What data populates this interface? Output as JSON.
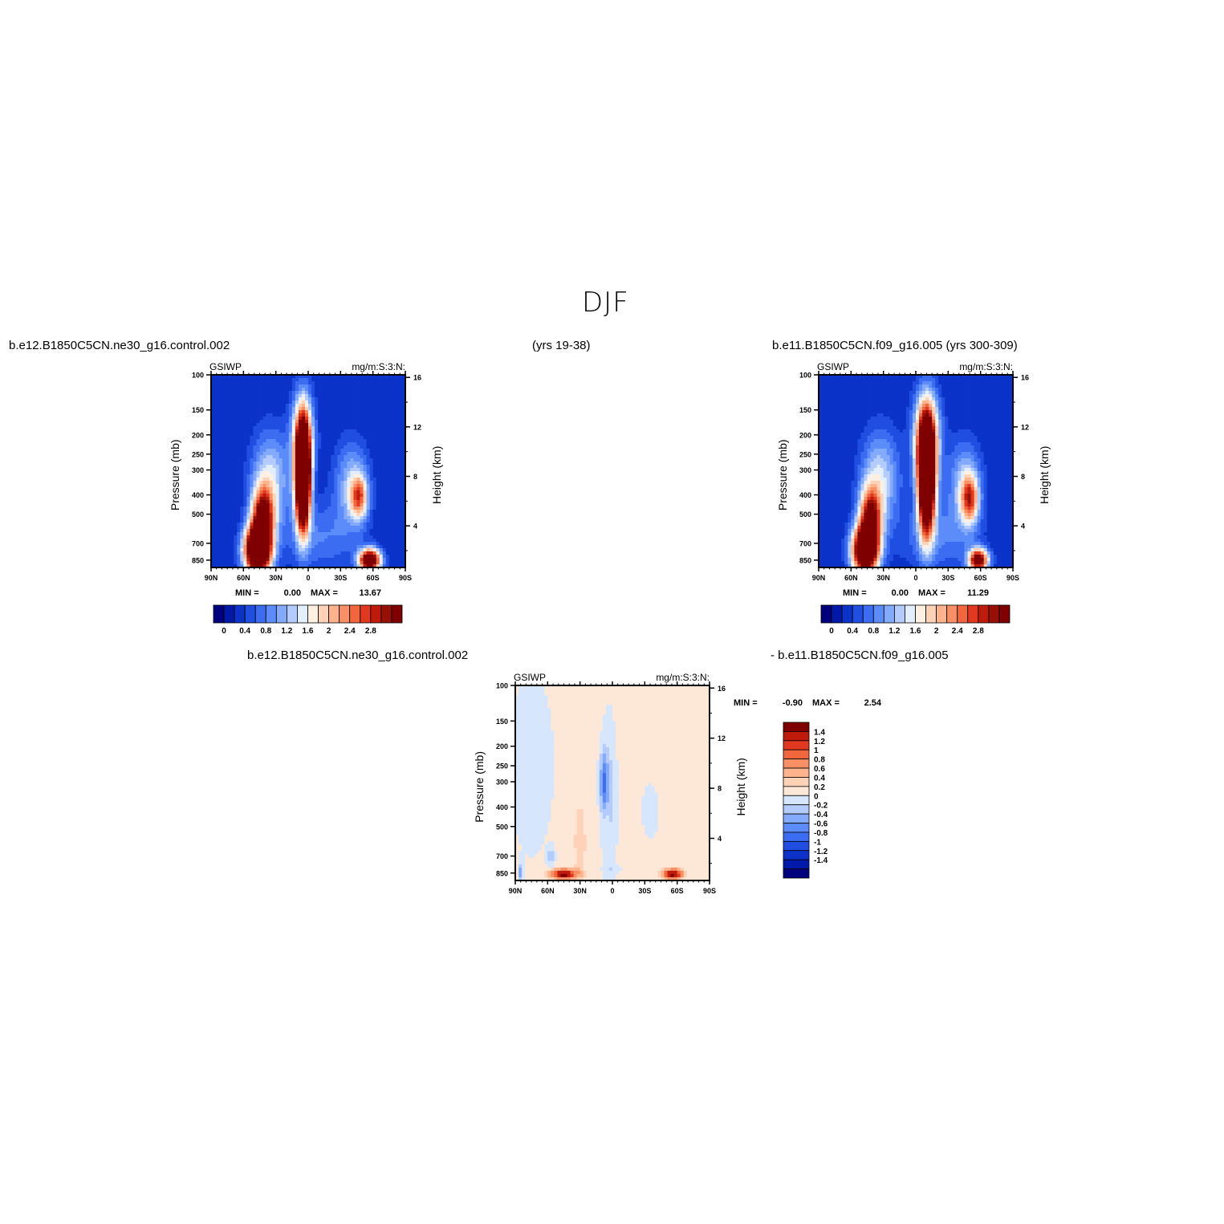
{
  "figure": {
    "title": "DJF",
    "run_left": "b.e12.B1850C5CN.ne30_g16.control.002",
    "years_left": "(yrs 19-38)",
    "run_right": "b.e11.B1850C5CN.f09_g16.005 (yrs 300-309)",
    "diff_run_a": "b.e12.B1850C5CN.ne30_g16.control.002",
    "diff_run_b": "- b.e11.B1850C5CN.f09_g16.005"
  },
  "colors": {
    "full_levels": [
      "#00007f",
      "#0019a8",
      "#0b32c9",
      "#1f4ee0",
      "#3b6cf2",
      "#5b8cfa",
      "#84aafb",
      "#b3cbfd",
      "#e3eefe",
      "#fff0e2",
      "#fdd2b6",
      "#fdb48c",
      "#f98f64",
      "#f2663e",
      "#e0391f",
      "#bf1b0c",
      "#961006",
      "#7e0000"
    ],
    "diff_levels": [
      "#00007f",
      "#0019a8",
      "#0b32c9",
      "#1f4ee0",
      "#3b6cf2",
      "#5b8cfa",
      "#84aafb",
      "#b3cbfd",
      "#d6e6fd",
      "#fde8d8",
      "#fdd2b6",
      "#fdb48c",
      "#f98f64",
      "#f2663e",
      "#e0391f",
      "#bf1b0c",
      "#7e0000"
    ]
  },
  "chart_data": [
    {
      "type": "heatmap",
      "id": "left",
      "title_left": "GSIWP",
      "title_right": "mg/m:S:3:N:",
      "ylabel": "Pressure (mb)",
      "ylabel_right": "Height (km)",
      "x_ticks": [
        "90N",
        "60N",
        "30N",
        "0",
        "30S",
        "60S",
        "90S"
      ],
      "y_ticks": [
        "100",
        "150",
        "200",
        "250",
        "300",
        "400",
        "500",
        "700",
        "850"
      ],
      "y_right_ticks": [
        "16",
        "12",
        "8",
        "4"
      ],
      "stats": {
        "min_label": "MIN =",
        "min": "0.00",
        "max_label": "MAX =",
        "max": "13.67"
      },
      "colorbar_labels": [
        "0",
        "0.4",
        "0.8",
        "1.2",
        "1.6",
        "2",
        "2.4",
        "2.8"
      ],
      "features": [
        {
          "lat": 47,
          "p": 700,
          "value": 5.0
        },
        {
          "lat": 8,
          "p": 300,
          "value": 6.5
        },
        {
          "lat": -55,
          "p": 800,
          "value": 4.0
        },
        {
          "lat": -48,
          "p": 400,
          "value": 1.6
        }
      ]
    },
    {
      "type": "heatmap",
      "id": "right",
      "title_left": "GSIWP",
      "title_right": "mg/m:S:3:N:",
      "ylabel": "Pressure (mb)",
      "ylabel_right": "Height (km)",
      "x_ticks": [
        "90N",
        "60N",
        "30N",
        "0",
        "30S",
        "60S",
        "90S"
      ],
      "y_ticks": [
        "100",
        "150",
        "200",
        "250",
        "300",
        "400",
        "500",
        "700",
        "850"
      ],
      "y_right_ticks": [
        "16",
        "12",
        "8",
        "4"
      ],
      "stats": {
        "min_label": "MIN =",
        "min": "0.00",
        "max_label": "MAX =",
        "max": "11.29"
      },
      "colorbar_labels": [
        "0",
        "0.4",
        "0.8",
        "1.2",
        "1.6",
        "2",
        "2.4",
        "2.8"
      ],
      "features": [
        {
          "lat": 47,
          "p": 700,
          "value": 4.5
        },
        {
          "lat": -12,
          "p": 300,
          "value": 6.0
        },
        {
          "lat": -55,
          "p": 800,
          "value": 3.5
        },
        {
          "lat": -50,
          "p": 400,
          "value": 1.8
        }
      ]
    },
    {
      "type": "heatmap",
      "id": "diff",
      "title_left": "GSIWP",
      "title_right": "mg/m:S:3:N:",
      "ylabel": "Pressure (mb)",
      "ylabel_right": "Height (km)",
      "x_ticks": [
        "90N",
        "60N",
        "30N",
        "0",
        "30S",
        "60S",
        "90S"
      ],
      "y_ticks": [
        "100",
        "150",
        "200",
        "250",
        "300",
        "400",
        "500",
        "700",
        "850"
      ],
      "y_right_ticks": [
        "16",
        "12",
        "8",
        "4"
      ],
      "stats": {
        "min_label": "MIN =",
        "min": "-0.90",
        "max_label": "MAX =",
        "max": "2.54"
      },
      "colorbar_labels": [
        "1.4",
        "1.2",
        "1",
        "0.8",
        "0.6",
        "0.4",
        "0.2",
        "0",
        "-0.2",
        "-0.4",
        "-0.6",
        "-0.8",
        "-1",
        "-1.2",
        "-1.4"
      ],
      "features": [
        {
          "lat": 10,
          "p": 300,
          "value": -0.8
        },
        {
          "lat": -35,
          "p": 400,
          "value": -0.3
        },
        {
          "lat": 55,
          "p": 750,
          "value": -0.6
        },
        {
          "lat": 50,
          "p": 830,
          "value": 1.4
        },
        {
          "lat": -55,
          "p": 840,
          "value": 1.5
        },
        {
          "lat": 30,
          "p": 700,
          "value": 0.6
        }
      ]
    }
  ]
}
